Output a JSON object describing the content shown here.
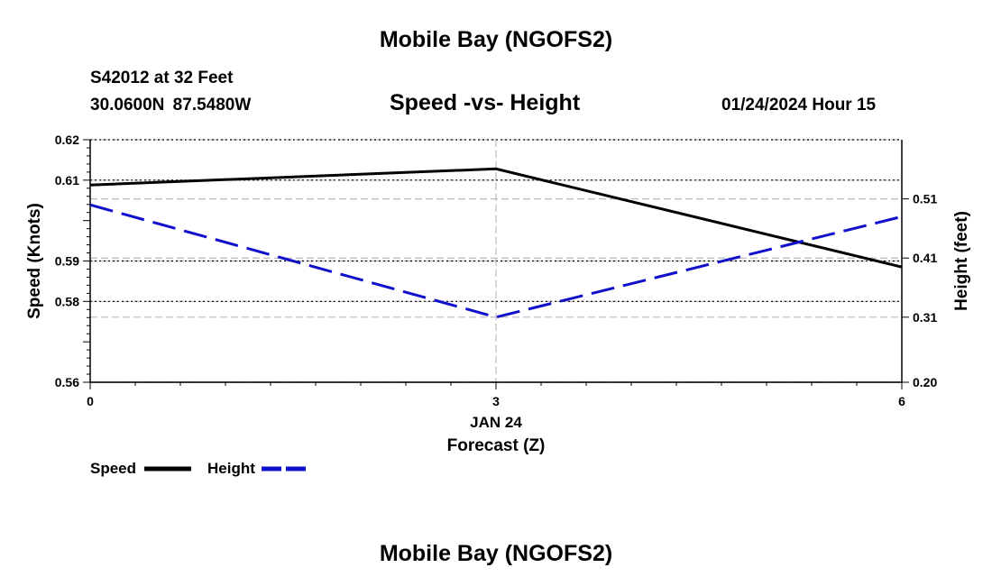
{
  "header": {
    "title": "Mobile Bay (NGOFS2)",
    "station": "S42012 at 32 Feet",
    "coords": "30.0600N  87.5480W",
    "subtitle": "Speed -vs- Height",
    "date": "01/24/2024 Hour 15"
  },
  "footer": {
    "title": "Mobile Bay (NGOFS2)"
  },
  "chart_data": {
    "type": "line",
    "x": [
      0,
      3,
      6
    ],
    "xlim": [
      0,
      6
    ],
    "xticks": [
      "0",
      "3",
      "6"
    ],
    "x_date_label": "JAN 24",
    "xlabel": "Forecast (Z)",
    "ylabel_left": "Speed (Knots)",
    "ylabel_right": "Height (feet)",
    "ylim_left": [
      0.56,
      0.62
    ],
    "yticks_left": [
      0.56,
      0.58,
      0.59,
      0.61,
      0.62
    ],
    "yticks_left_labels": [
      "0.56",
      "0.58",
      "0.59",
      "0.61",
      "0.62"
    ],
    "ylim_right": [
      0.2,
      0.61
    ],
    "yticks_right": [
      0.2,
      0.31,
      0.41,
      0.51
    ],
    "yticks_right_labels": [
      "0.20",
      "0.31",
      "0.41",
      "0.51"
    ],
    "series": [
      {
        "name": "Speed",
        "axis": "left",
        "color": "#000000",
        "style": "solid",
        "values": [
          0.6088,
          0.6128,
          0.5885
        ]
      },
      {
        "name": "Height",
        "axis": "right",
        "color": "#1010cc",
        "style": "dashed",
        "values": [
          0.5,
          0.31,
          0.48
        ]
      }
    ],
    "legend": [
      {
        "label": "Speed",
        "color": "#000000",
        "style": "solid"
      },
      {
        "label": "Height",
        "color": "#1010cc",
        "style": "dashed"
      }
    ],
    "grid": true
  }
}
